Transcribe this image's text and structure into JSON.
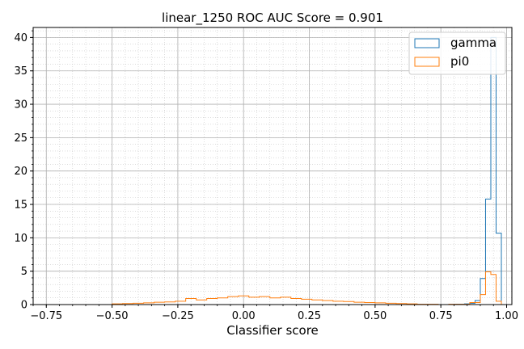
{
  "chart_data": {
    "type": "histogram",
    "title": "linear_1250 ROC AUC Score = 0.901",
    "xlabel": "Classifier score",
    "ylabel": "",
    "xlim": [
      -0.8,
      1.02
    ],
    "ylim": [
      0,
      41.5
    ],
    "xticks": [
      -0.75,
      -0.5,
      -0.25,
      0.0,
      0.25,
      0.5,
      0.75,
      1.0
    ],
    "xtick_labels": [
      "−0.75",
      "−0.50",
      "−0.25",
      "0.00",
      "0.25",
      "0.50",
      "0.75",
      "1.00"
    ],
    "yticks": [
      0,
      5,
      10,
      15,
      20,
      25,
      30,
      35,
      40
    ],
    "ytick_labels": [
      "0",
      "5",
      "10",
      "15",
      "20",
      "25",
      "30",
      "35",
      "40"
    ],
    "grid": "major and minor",
    "legend_position": "top-right",
    "series": [
      {
        "name": "gamma",
        "color": "#1f77b4",
        "style": "step",
        "bins": [
          {
            "x0": 0.8,
            "x1": 0.82,
            "value": 0.05
          },
          {
            "x0": 0.82,
            "x1": 0.84,
            "value": 0.05
          },
          {
            "x0": 0.84,
            "x1": 0.86,
            "value": 0.1
          },
          {
            "x0": 0.86,
            "x1": 0.88,
            "value": 0.2
          },
          {
            "x0": 0.88,
            "x1": 0.9,
            "value": 0.6
          },
          {
            "x0": 0.9,
            "x1": 0.92,
            "value": 3.9
          },
          {
            "x0": 0.92,
            "x1": 0.94,
            "value": 15.8
          },
          {
            "x0": 0.94,
            "x1": 0.96,
            "value": 40.0
          },
          {
            "x0": 0.96,
            "x1": 0.98,
            "value": 10.7
          }
        ]
      },
      {
        "name": "pi0",
        "color": "#ff7f0e",
        "style": "step",
        "bins": [
          {
            "x0": -0.5,
            "x1": -0.46,
            "value": 0.1
          },
          {
            "x0": -0.46,
            "x1": -0.42,
            "value": 0.15
          },
          {
            "x0": -0.42,
            "x1": -0.38,
            "value": 0.2
          },
          {
            "x0": -0.38,
            "x1": -0.34,
            "value": 0.25
          },
          {
            "x0": -0.34,
            "x1": -0.3,
            "value": 0.35
          },
          {
            "x0": -0.3,
            "x1": -0.26,
            "value": 0.4
          },
          {
            "x0": -0.26,
            "x1": -0.22,
            "value": 0.5
          },
          {
            "x0": -0.22,
            "x1": -0.18,
            "value": 0.9
          },
          {
            "x0": -0.18,
            "x1": -0.14,
            "value": 0.7
          },
          {
            "x0": -0.14,
            "x1": -0.1,
            "value": 0.9
          },
          {
            "x0": -0.1,
            "x1": -0.06,
            "value": 1.0
          },
          {
            "x0": -0.06,
            "x1": -0.02,
            "value": 1.2
          },
          {
            "x0": -0.02,
            "x1": 0.02,
            "value": 1.3
          },
          {
            "x0": 0.02,
            "x1": 0.06,
            "value": 1.1
          },
          {
            "x0": 0.06,
            "x1": 0.1,
            "value": 1.2
          },
          {
            "x0": 0.1,
            "x1": 0.14,
            "value": 1.0
          },
          {
            "x0": 0.14,
            "x1": 0.18,
            "value": 1.1
          },
          {
            "x0": 0.18,
            "x1": 0.22,
            "value": 0.9
          },
          {
            "x0": 0.22,
            "x1": 0.26,
            "value": 0.8
          },
          {
            "x0": 0.26,
            "x1": 0.3,
            "value": 0.7
          },
          {
            "x0": 0.3,
            "x1": 0.34,
            "value": 0.6
          },
          {
            "x0": 0.34,
            "x1": 0.38,
            "value": 0.5
          },
          {
            "x0": 0.38,
            "x1": 0.42,
            "value": 0.45
          },
          {
            "x0": 0.42,
            "x1": 0.46,
            "value": 0.35
          },
          {
            "x0": 0.46,
            "x1": 0.5,
            "value": 0.3
          },
          {
            "x0": 0.5,
            "x1": 0.54,
            "value": 0.25
          },
          {
            "x0": 0.54,
            "x1": 0.58,
            "value": 0.2
          },
          {
            "x0": 0.58,
            "x1": 0.62,
            "value": 0.15
          },
          {
            "x0": 0.62,
            "x1": 0.66,
            "value": 0.1
          },
          {
            "x0": 0.66,
            "x1": 0.7,
            "value": 0.05
          },
          {
            "x0": 0.7,
            "x1": 0.74,
            "value": 0.05
          },
          {
            "x0": 0.74,
            "x1": 0.78,
            "value": 0.0
          },
          {
            "x0": 0.78,
            "x1": 0.82,
            "value": 0.05
          },
          {
            "x0": 0.82,
            "x1": 0.86,
            "value": 0.05
          },
          {
            "x0": 0.86,
            "x1": 0.9,
            "value": 0.3
          },
          {
            "x0": 0.9,
            "x1": 0.92,
            "value": 1.5
          },
          {
            "x0": 0.92,
            "x1": 0.94,
            "value": 4.9
          },
          {
            "x0": 0.94,
            "x1": 0.96,
            "value": 4.5
          },
          {
            "x0": 0.96,
            "x1": 0.98,
            "value": 0.5
          }
        ]
      }
    ]
  }
}
